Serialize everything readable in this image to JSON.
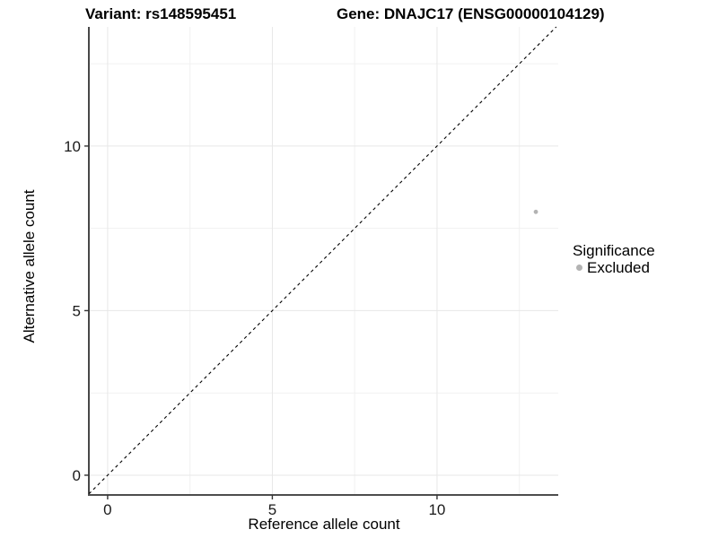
{
  "header": {
    "variant_title": "Variant: rs148595451",
    "gene_title": "Gene: DNAJC17 (ENSG00000104129)"
  },
  "chart_data": {
    "type": "scatter",
    "titles": [
      "Variant: rs148595451",
      "Gene: DNAJC17 (ENSG00000104129)"
    ],
    "xlabel": "Reference allele count",
    "ylabel": "Alternative allele count",
    "xlim": [
      -0.57,
      13.68
    ],
    "ylim": [
      -0.6,
      13.62
    ],
    "x_ticks": [
      0,
      5,
      10
    ],
    "y_ticks": [
      0,
      5,
      10
    ],
    "x_minor_ticks": [
      2.5,
      7.5,
      12.5
    ],
    "y_minor_ticks": [
      2.5,
      7.5,
      12.5
    ],
    "grid": true,
    "identity_line": {
      "style": "dashed",
      "color": "#000000"
    },
    "series": [
      {
        "name": "Excluded",
        "color": "#b3b3b3",
        "points": [
          {
            "x": 13,
            "y": 8
          }
        ]
      }
    ],
    "legend": {
      "position": "right",
      "title": "Significance",
      "items": [
        {
          "label": "Excluded",
          "color": "#b3b3b3"
        }
      ]
    }
  }
}
